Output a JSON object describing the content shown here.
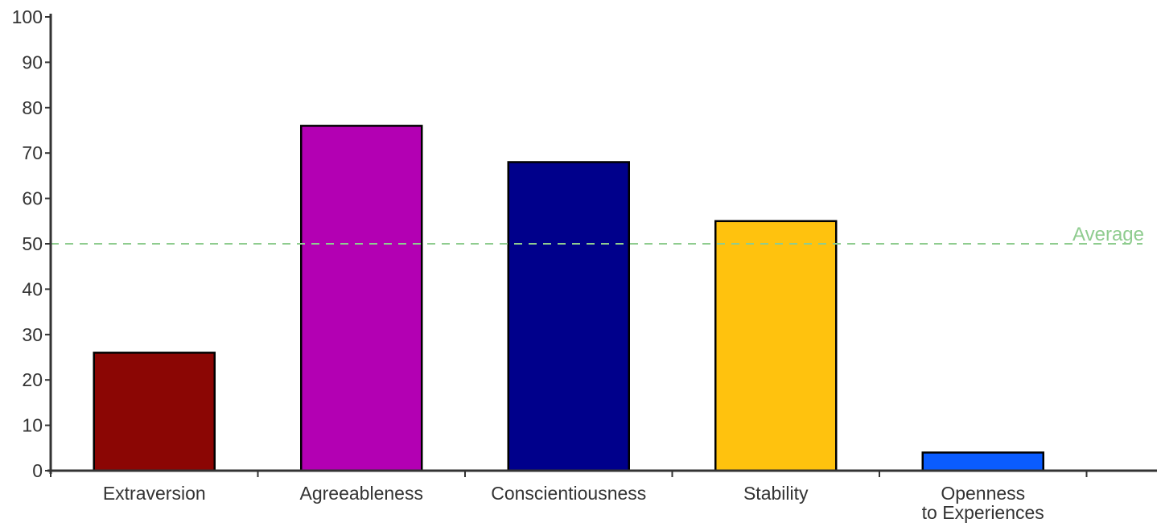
{
  "chart_data": {
    "type": "bar",
    "title": "",
    "xlabel": "",
    "ylabel": "",
    "categories": [
      [
        "Extraversion"
      ],
      [
        "Agreeableness"
      ],
      [
        "Conscientiousness"
      ],
      [
        "Stability"
      ],
      [
        "Openness",
        "to Experiences"
      ]
    ],
    "values": [
      26,
      76,
      68,
      55,
      4
    ],
    "colors": [
      "#8b0604",
      "#b300b3",
      "#00008b",
      "#ffc20e",
      "#0a5cff"
    ],
    "ylim": [
      0,
      100
    ],
    "yticks": [
      0,
      10,
      20,
      30,
      40,
      50,
      60,
      70,
      80,
      90,
      100
    ],
    "grid": false,
    "reference_line": {
      "value": 50,
      "label": "Average",
      "style": "dashed",
      "color": "#8fcc8f"
    }
  }
}
